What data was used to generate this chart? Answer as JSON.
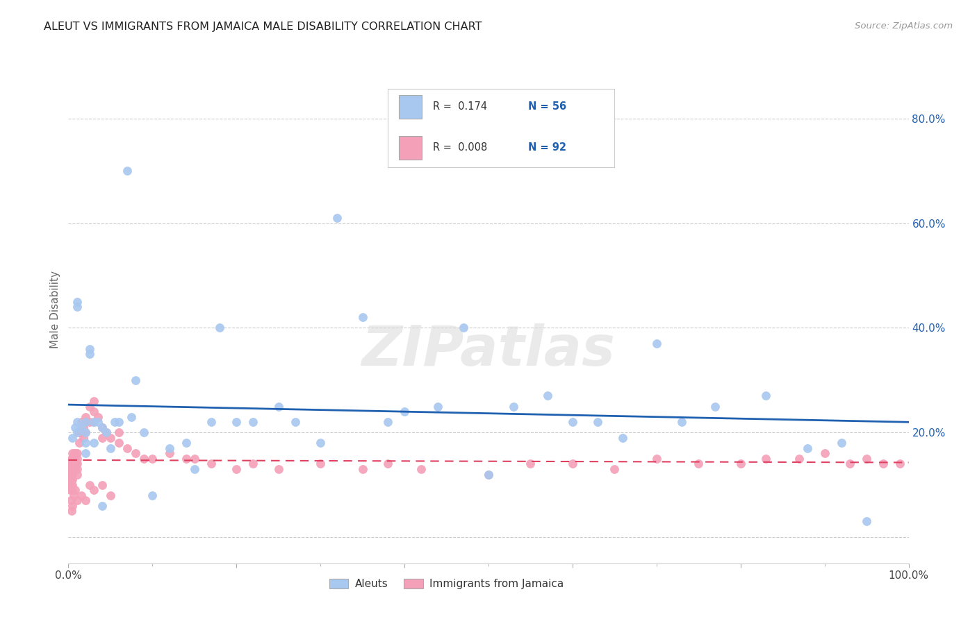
{
  "title": "ALEUT VS IMMIGRANTS FROM JAMAICA MALE DISABILITY CORRELATION CHART",
  "source": "Source: ZipAtlas.com",
  "ylabel": "Male Disability",
  "xlabel": "",
  "xlim": [
    0.0,
    1.0
  ],
  "ylim": [
    -0.05,
    0.92
  ],
  "x_ticks": [
    0.0,
    0.2,
    0.4,
    0.6,
    0.8,
    1.0
  ],
  "x_tick_labels": [
    "0.0%",
    "",
    "",
    "",
    "",
    "100.0%"
  ],
  "y_ticks": [
    0.0,
    0.2,
    0.4,
    0.6,
    0.8
  ],
  "y_tick_labels": [
    "",
    "20.0%",
    "40.0%",
    "60.0%",
    "80.0%"
  ],
  "legend_blue_R": "0.174",
  "legend_blue_N": "56",
  "legend_pink_R": "0.008",
  "legend_pink_N": "92",
  "legend_labels": [
    "Aleuts",
    "Immigrants from Jamaica"
  ],
  "blue_color": "#A8C8F0",
  "pink_color": "#F4A0B8",
  "blue_line_color": "#2060B0",
  "pink_line_color": "#E04060",
  "grid_color": "#CCCCCC",
  "watermark": "ZIPatlas",
  "title_fontsize": 12,
  "aleut_x": [
    0.005,
    0.008,
    0.01,
    0.01,
    0.01,
    0.01,
    0.015,
    0.02,
    0.02,
    0.02,
    0.02,
    0.025,
    0.025,
    0.03,
    0.03,
    0.035,
    0.04,
    0.04,
    0.045,
    0.05,
    0.055,
    0.06,
    0.07,
    0.075,
    0.08,
    0.09,
    0.1,
    0.12,
    0.14,
    0.15,
    0.17,
    0.18,
    0.2,
    0.22,
    0.25,
    0.27,
    0.3,
    0.32,
    0.35,
    0.38,
    0.4,
    0.44,
    0.47,
    0.5,
    0.53,
    0.57,
    0.6,
    0.63,
    0.66,
    0.7,
    0.73,
    0.77,
    0.83,
    0.88,
    0.92,
    0.95
  ],
  "aleut_y": [
    0.19,
    0.21,
    0.45,
    0.44,
    0.22,
    0.2,
    0.21,
    0.22,
    0.2,
    0.18,
    0.16,
    0.35,
    0.36,
    0.22,
    0.18,
    0.22,
    0.21,
    0.06,
    0.2,
    0.17,
    0.22,
    0.22,
    0.7,
    0.23,
    0.3,
    0.2,
    0.08,
    0.17,
    0.18,
    0.13,
    0.22,
    0.4,
    0.22,
    0.22,
    0.25,
    0.22,
    0.18,
    0.61,
    0.42,
    0.22,
    0.24,
    0.25,
    0.4,
    0.12,
    0.25,
    0.27,
    0.22,
    0.22,
    0.19,
    0.37,
    0.22,
    0.25,
    0.27,
    0.17,
    0.18,
    0.03
  ],
  "jamaica_x": [
    0.002,
    0.002,
    0.002,
    0.003,
    0.003,
    0.003,
    0.004,
    0.004,
    0.004,
    0.005,
    0.005,
    0.005,
    0.005,
    0.005,
    0.005,
    0.005,
    0.005,
    0.006,
    0.006,
    0.007,
    0.007,
    0.008,
    0.008,
    0.009,
    0.009,
    0.01,
    0.01,
    0.01,
    0.01,
    0.01,
    0.012,
    0.013,
    0.015,
    0.015,
    0.018,
    0.018,
    0.02,
    0.02,
    0.02,
    0.025,
    0.025,
    0.03,
    0.03,
    0.03,
    0.035,
    0.04,
    0.04,
    0.045,
    0.05,
    0.06,
    0.06,
    0.07,
    0.08,
    0.09,
    0.1,
    0.12,
    0.14,
    0.15,
    0.17,
    0.2,
    0.22,
    0.25,
    0.3,
    0.35,
    0.38,
    0.42,
    0.5,
    0.55,
    0.6,
    0.65,
    0.7,
    0.75,
    0.8,
    0.83,
    0.87,
    0.9,
    0.93,
    0.95,
    0.97,
    0.99,
    0.003,
    0.004,
    0.005,
    0.006,
    0.008,
    0.01,
    0.015,
    0.02,
    0.025,
    0.03,
    0.04,
    0.05
  ],
  "jamaica_y": [
    0.13,
    0.11,
    0.09,
    0.14,
    0.12,
    0.1,
    0.15,
    0.13,
    0.11,
    0.16,
    0.15,
    0.14,
    0.13,
    0.12,
    0.11,
    0.1,
    0.09,
    0.15,
    0.13,
    0.16,
    0.14,
    0.15,
    0.13,
    0.16,
    0.14,
    0.16,
    0.15,
    0.14,
    0.13,
    0.12,
    0.2,
    0.18,
    0.22,
    0.2,
    0.21,
    0.19,
    0.23,
    0.22,
    0.2,
    0.25,
    0.22,
    0.26,
    0.24,
    0.22,
    0.23,
    0.21,
    0.19,
    0.2,
    0.19,
    0.2,
    0.18,
    0.17,
    0.16,
    0.15,
    0.15,
    0.16,
    0.15,
    0.15,
    0.14,
    0.13,
    0.14,
    0.13,
    0.14,
    0.13,
    0.14,
    0.13,
    0.12,
    0.14,
    0.14,
    0.13,
    0.15,
    0.14,
    0.14,
    0.15,
    0.15,
    0.16,
    0.14,
    0.15,
    0.14,
    0.14,
    0.07,
    0.05,
    0.06,
    0.08,
    0.09,
    0.07,
    0.08,
    0.07,
    0.1,
    0.09,
    0.1,
    0.08
  ]
}
